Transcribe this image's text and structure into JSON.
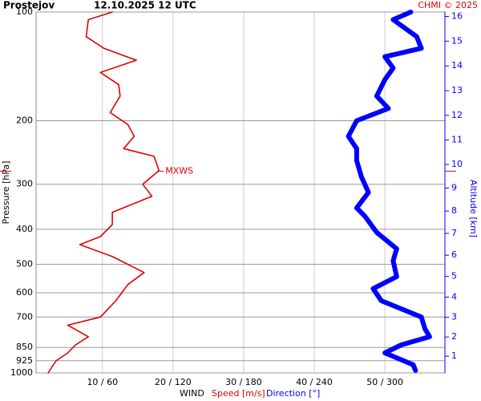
{
  "chart_data": {
    "type": "line",
    "title": "Prostejov",
    "subtitle": "12.10.2025 12 UTC",
    "credit": "CHMI © 2025",
    "y_label": "Pressure [hPa]",
    "y2_label": "Altitude [km]",
    "x_label": "WIND",
    "ylog": true,
    "yinvert": true,
    "ylim": [
      100,
      1000
    ],
    "yticks": [
      100,
      200,
      300,
      400,
      500,
      600,
      700,
      850,
      925,
      1000
    ],
    "y2lim": [
      0.1,
      16.2
    ],
    "y2ticks": [
      1,
      2,
      3,
      4,
      5,
      6,
      7,
      8,
      9,
      10,
      11,
      12,
      13,
      14,
      15,
      16
    ],
    "xlim": [
      0.6,
      58.5
    ],
    "x2lim": [
      3.6,
      351
    ],
    "xticks": [
      {
        "value": 10,
        "label": "10 / 60"
      },
      {
        "value": 20,
        "label": "20 / 120"
      },
      {
        "value": 30,
        "label": "30 / 180"
      },
      {
        "value": 40,
        "label": "40 / 240"
      },
      {
        "value": 50,
        "label": "50 / 300"
      }
    ],
    "grid": true,
    "annotation": {
      "label": "MXWS",
      "pressure": 276,
      "speed": 18,
      "color": "#e00000"
    },
    "series": [
      {
        "name": "Speed [m/s]",
        "color": "#e00000",
        "pressure": [
          100,
          105,
          117,
          126,
          136,
          147,
          159,
          171,
          190,
          205,
          221,
          239,
          251,
          275,
          300,
          324,
          359,
          388,
          419,
          441,
          476,
          527,
          569,
          631,
          700,
          737,
          794,
          836,
          880,
          926,
          1000
        ],
        "values": [
          11.4,
          8,
          7.7,
          10.2,
          14.8,
          9.7,
          12.3,
          12.5,
          11.1,
          13.6,
          14.5,
          13,
          17.3,
          18,
          15.7,
          17,
          11.4,
          11.4,
          9.7,
          6.8,
          11.4,
          15.9,
          13.6,
          11.9,
          9.7,
          5.1,
          8,
          6.2,
          5.1,
          3.4,
          2.3
        ]
      },
      {
        "name": "Direction [°]",
        "color": "#0000ff",
        "axis": "x2",
        "pressure": [
          100,
          105,
          117,
          126,
          133,
          143,
          154,
          171,
          185,
          200,
          221,
          239,
          258,
          286,
          316,
          349,
          368,
          408,
          453,
          489,
          541,
          584,
          631,
          700,
          754,
          794,
          836,
          880,
          949,
          984
        ],
        "values": [
          322,
          307,
          327,
          331,
          300,
          307,
          300,
          293,
          303,
          276,
          269,
          276,
          276,
          280,
          286,
          276,
          283,
          293,
          310,
          307,
          310,
          290,
          297,
          331,
          334,
          338,
          314,
          300,
          324,
          326
        ]
      }
    ]
  }
}
